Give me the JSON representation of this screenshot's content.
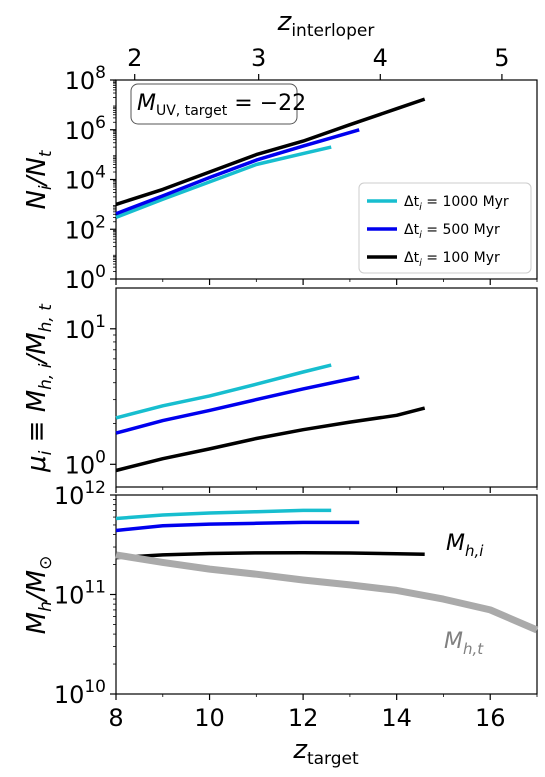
{
  "chart_data": [
    {
      "type": "line",
      "panel": "top",
      "ylabel": "N_i/N_t",
      "yscale": "log",
      "xlim": [
        8,
        17
      ],
      "ylim": [
        1,
        100000000
      ],
      "yticks": [
        {
          "value": 1,
          "base": "10",
          "exp": "0"
        },
        {
          "value": 100,
          "base": "10",
          "exp": "2"
        },
        {
          "value": 10000,
          "base": "10",
          "exp": "4"
        },
        {
          "value": 1000000,
          "base": "10",
          "exp": "6"
        },
        {
          "value": 100000000,
          "base": "10",
          "exp": "8"
        }
      ],
      "annotation": {
        "main": "M",
        "sub": "UV, target",
        "rest": " = −22"
      },
      "legend": {
        "position": "lower-right",
        "entries": [
          {
            "label_prefix": "Δt",
            "label_sub": "i",
            "label_rest": " = 1000 Myr",
            "color": "#17becf"
          },
          {
            "label_prefix": "Δt",
            "label_sub": "i",
            "label_rest": " = 500 Myr",
            "color": "#0000ee"
          },
          {
            "label_prefix": "Δt",
            "label_sub": "i",
            "label_rest": " = 100 Myr",
            "color": "#000000"
          }
        ]
      },
      "series": [
        {
          "color": "#17becf",
          "x": [
            8.0,
            9.0,
            10.0,
            11.0,
            12.0,
            12.6
          ],
          "y": [
            300,
            1600,
            8000,
            40000,
            110000,
            200000
          ]
        },
        {
          "color": "#0000ee",
          "x": [
            8.0,
            9.0,
            10.0,
            11.0,
            12.0,
            13.2
          ],
          "y": [
            420,
            2200,
            12000,
            60000,
            220000,
            1000000
          ]
        },
        {
          "color": "#000000",
          "x": [
            8.0,
            9.0,
            10.0,
            11.0,
            12.0,
            13.0,
            14.0,
            14.6
          ],
          "y": [
            1000,
            4000,
            20000,
            100000,
            350000,
            1600000,
            7000000,
            17000000
          ]
        }
      ]
    },
    {
      "type": "line",
      "panel": "middle",
      "ylabel": "μ_i ≡ M_h,i/M_h,t",
      "yscale": "log",
      "xlim": [
        8,
        17
      ],
      "ylim": [
        0.68,
        20
      ],
      "yticks": [
        {
          "value": 1,
          "base": "10",
          "exp": "0"
        },
        {
          "value": 10,
          "base": "10",
          "exp": "1"
        }
      ],
      "series": [
        {
          "color": "#17becf",
          "x": [
            8.0,
            9.0,
            10.0,
            11.0,
            12.0,
            12.6
          ],
          "y": [
            2.2,
            2.7,
            3.2,
            3.9,
            4.8,
            5.4
          ]
        },
        {
          "color": "#0000ee",
          "x": [
            8.0,
            9.0,
            10.0,
            11.0,
            12.0,
            13.2
          ],
          "y": [
            1.7,
            2.1,
            2.5,
            3.0,
            3.6,
            4.4
          ]
        },
        {
          "color": "#000000",
          "x": [
            8.0,
            9.0,
            10.0,
            11.0,
            12.0,
            13.0,
            14.0,
            14.6
          ],
          "y": [
            0.9,
            1.1,
            1.3,
            1.55,
            1.8,
            2.05,
            2.3,
            2.6
          ]
        }
      ]
    },
    {
      "type": "line",
      "panel": "bottom",
      "ylabel": "M_h/M_⊙",
      "xlabel": "z_target",
      "yscale": "log",
      "xlim": [
        8,
        17
      ],
      "ylim": [
        10000000000,
        1000000000000
      ],
      "xticks": [
        "8",
        "10",
        "12",
        "14",
        "16"
      ],
      "yticks": [
        {
          "value": 10000000000,
          "base": "10",
          "exp": "10"
        },
        {
          "value": 100000000000,
          "base": "10",
          "exp": "11"
        },
        {
          "value": 1000000000000,
          "base": "10",
          "exp": "12"
        }
      ],
      "labels": [
        {
          "main": "M",
          "sub": "h,i",
          "color": "#000000"
        },
        {
          "main": "M",
          "sub": "h,t",
          "color": "#808080"
        }
      ],
      "series": [
        {
          "color": "#17becf",
          "x": [
            8.0,
            9.0,
            10.0,
            11.0,
            12.0,
            12.6
          ],
          "y": [
            580000000000,
            630000000000,
            660000000000,
            680000000000,
            700000000000,
            700000000000
          ]
        },
        {
          "color": "#0000ee",
          "x": [
            8.0,
            9.0,
            10.0,
            11.0,
            12.0,
            13.2
          ],
          "y": [
            440000000000,
            490000000000,
            510000000000,
            520000000000,
            530000000000,
            530000000000
          ]
        },
        {
          "color": "#000000",
          "x": [
            8.0,
            9.0,
            10.0,
            11.0,
            12.0,
            13.0,
            14.0,
            14.6
          ],
          "y": [
            235000000000,
            250000000000,
            258000000000,
            262000000000,
            263000000000,
            261000000000,
            257000000000,
            254000000000
          ]
        },
        {
          "color": "#aaaaaa",
          "x": [
            8.0,
            9.0,
            10.0,
            11.0,
            12.0,
            13.0,
            14.0,
            15.0,
            16.0,
            17.0
          ],
          "y": [
            250000000000,
            210000000000,
            180000000000,
            160000000000,
            140000000000,
            125000000000,
            110000000000,
            90000000000,
            70000000000,
            44000000000
          ]
        }
      ]
    }
  ],
  "top_axis": {
    "label_main": "z",
    "label_sub": "interloper",
    "ticks": [
      {
        "label": "2",
        "z_target": 8.4
      },
      {
        "label": "3",
        "z_target": 11.05
      },
      {
        "label": "4",
        "z_target": 13.65
      },
      {
        "label": "5",
        "z_target": 16.25
      }
    ]
  }
}
